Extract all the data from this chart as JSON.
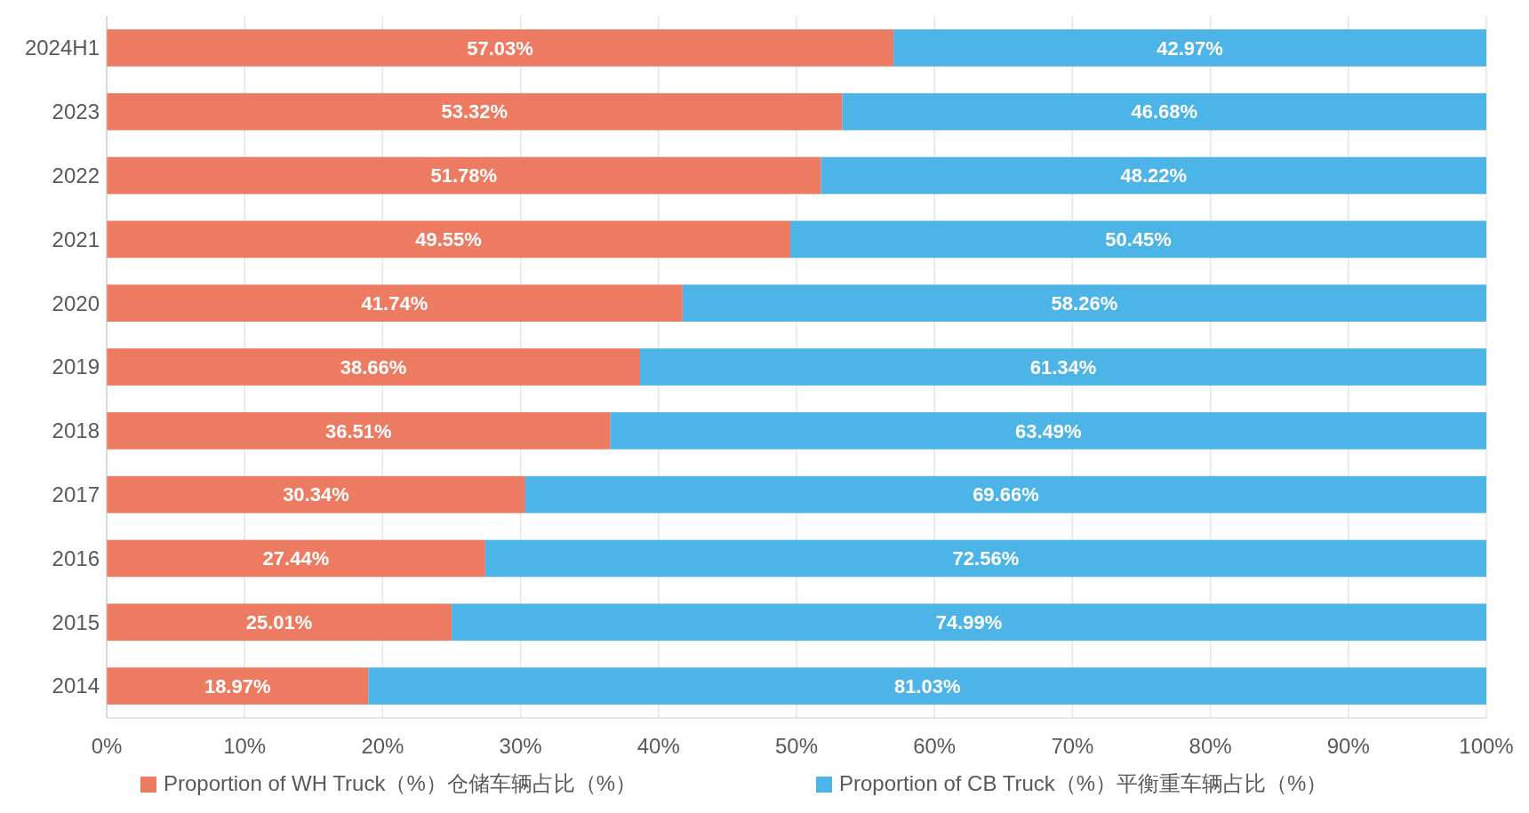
{
  "chart_data": {
    "type": "bar",
    "orientation": "horizontal",
    "stacked": true,
    "categories": [
      "2024H1",
      "2023",
      "2022",
      "2021",
      "2020",
      "2019",
      "2018",
      "2017",
      "2016",
      "2015",
      "2014"
    ],
    "series": [
      {
        "name": "Proportion of WH Truck（%）仓储车辆占比（%）",
        "color": "#ec7b62",
        "values": [
          57.03,
          53.32,
          51.78,
          49.55,
          41.74,
          38.66,
          36.51,
          30.34,
          27.44,
          25.01,
          18.97
        ],
        "value_labels": [
          "57.03%",
          "53.32%",
          "51.78%",
          "49.55%",
          "41.74%",
          "38.66%",
          "36.51%",
          "30.34%",
          "27.44%",
          "25.01%",
          "18.97%"
        ]
      },
      {
        "name": "Proportion of CB Truck（%）平衡重车辆占比（%）",
        "color": "#4db4e8",
        "values": [
          42.97,
          46.68,
          48.22,
          50.45,
          58.26,
          61.34,
          63.49,
          69.66,
          72.56,
          74.99,
          81.03
        ],
        "value_labels": [
          "42.97%",
          "46.68%",
          "48.22%",
          "50.45%",
          "58.26%",
          "61.34%",
          "63.49%",
          "69.66%",
          "72.56%",
          "74.99%",
          "81.03%"
        ]
      }
    ],
    "xlim": [
      0,
      100
    ],
    "xticks": [
      {
        "value": 0,
        "label": "0%"
      },
      {
        "value": 10,
        "label": "10%"
      },
      {
        "value": 20,
        "label": "20%"
      },
      {
        "value": 30,
        "label": "30%"
      },
      {
        "value": 40,
        "label": "40%"
      },
      {
        "value": 50,
        "label": "50%"
      },
      {
        "value": 60,
        "label": "60%"
      },
      {
        "value": 70,
        "label": "70%"
      },
      {
        "value": 80,
        "label": "80%"
      },
      {
        "value": 90,
        "label": "90%"
      },
      {
        "value": 100,
        "label": "100%"
      }
    ],
    "grid": "x",
    "legend": "bottom"
  }
}
